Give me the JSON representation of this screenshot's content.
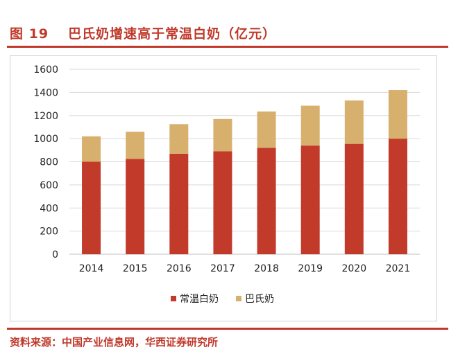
{
  "figure": {
    "label": "图 19",
    "caption": "巴氏奶增速高于常温白奶（亿元）"
  },
  "source": "资料来源：中国产业信息网，华西证券研究所",
  "colors": {
    "accent": "#c0392b",
    "series_uht": "#c23a2a",
    "series_pasteurized": "#d8b06e"
  },
  "chart_data": {
    "type": "bar",
    "stacked": true,
    "categories": [
      "2014",
      "2015",
      "2016",
      "2017",
      "2018",
      "2019",
      "2020",
      "2021"
    ],
    "series": [
      {
        "name": "常温白奶",
        "values": [
          800,
          825,
          870,
          890,
          920,
          940,
          955,
          1000
        ]
      },
      {
        "name": "巴氏奶",
        "values": [
          220,
          235,
          255,
          280,
          315,
          345,
          375,
          420
        ]
      }
    ],
    "ylim": [
      0,
      1600
    ],
    "yticks": [
      0,
      200,
      400,
      600,
      800,
      1000,
      1200,
      1400,
      1600
    ],
    "grid": true,
    "legend_position": "bottom"
  }
}
